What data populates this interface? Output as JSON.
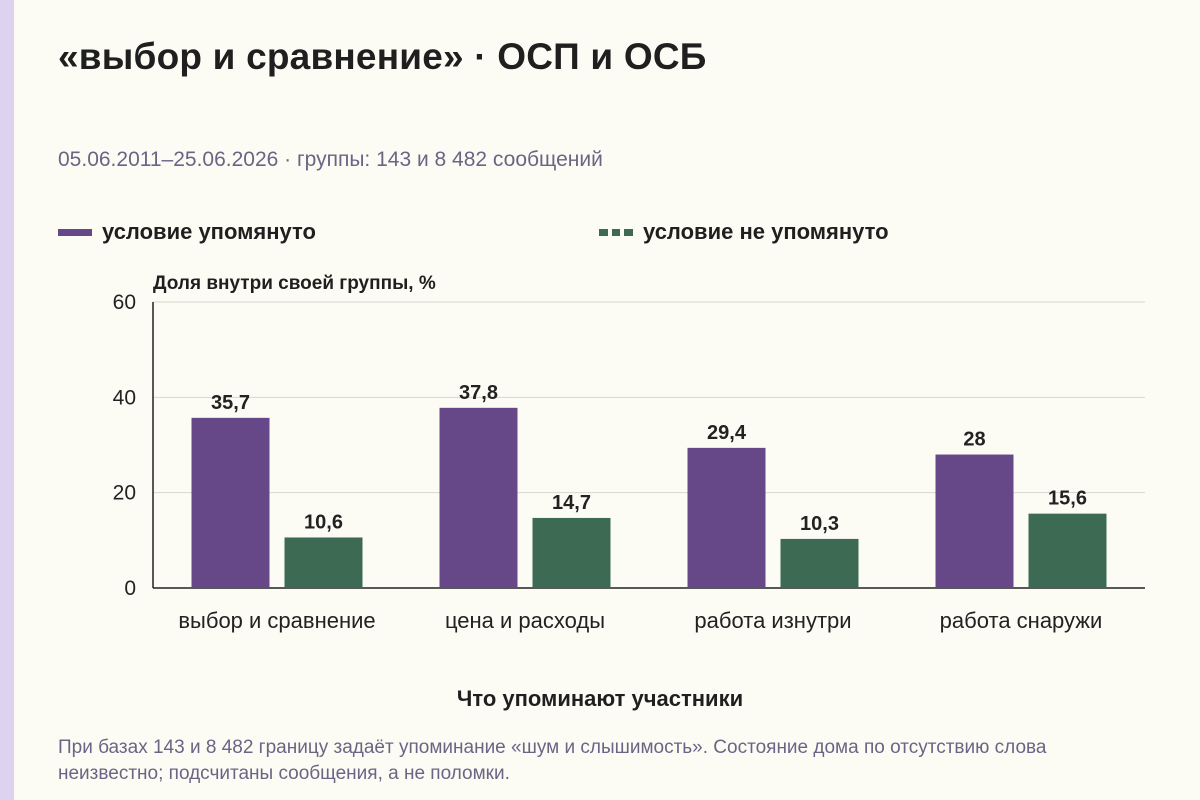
{
  "title": "«выбор и сравнение» · ОСП и ОСБ",
  "subtitle": "05.06.2011–25.06.2026 · группы: 143 и 8 482 сообщений",
  "footnote": "При базах 143 и 8 482 границу задаёт упоминание «шум и слышимость». Состояние дома по отсутствию слова неизвестно; подсчитаны сообщения, а не поломки.",
  "colors": {
    "mentioned": "#664888",
    "not_mentioned": "#3d6a52",
    "grid": "#d9d6cf",
    "axis": "#222222",
    "background": "#fdfcf4"
  },
  "chart_data": {
    "type": "bar",
    "xlabel": "Что упоминают участники",
    "ylabel": "Доля внутри своей группы, %",
    "ylim": [
      0,
      60
    ],
    "yticks": [
      0,
      20,
      40,
      60
    ],
    "grid": true,
    "legend_position": "top",
    "categories": [
      "выбор и сравнение",
      "цена и расходы",
      "работа изнутри",
      "работа снаружи"
    ],
    "series": [
      {
        "name": "условие упомянуто",
        "values": [
          35.7,
          37.8,
          29.4,
          28
        ],
        "labels": [
          "35,7",
          "37,8",
          "29,4",
          "28"
        ]
      },
      {
        "name": "условие не упомянуто",
        "values": [
          10.6,
          14.7,
          10.3,
          15.6
        ],
        "labels": [
          "10,6",
          "14,7",
          "10,3",
          "15,6"
        ]
      }
    ]
  }
}
